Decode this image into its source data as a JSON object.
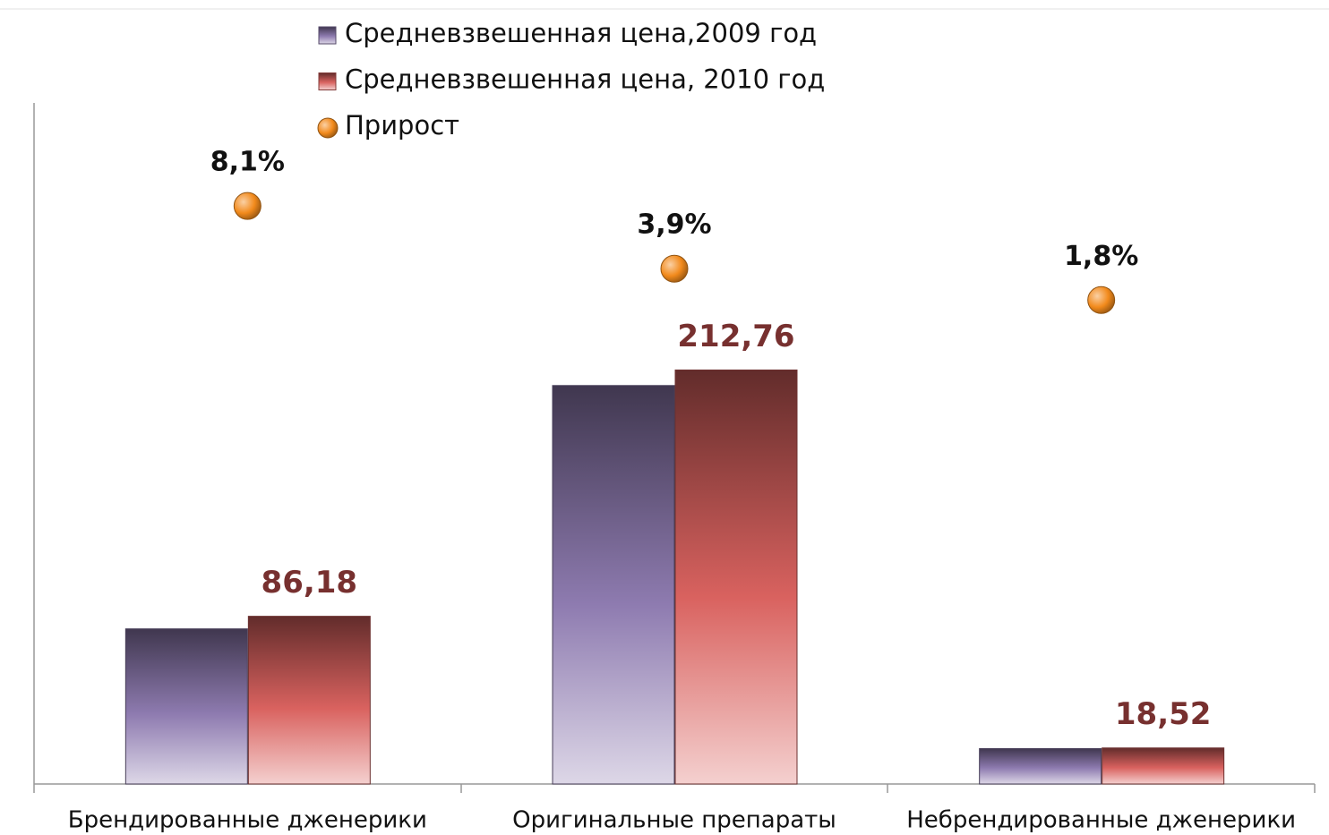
{
  "chart_data": {
    "type": "bar",
    "categories": [
      "Брендированные дженерики",
      "Оригинальные препараты",
      "Небрендированные дженерики"
    ],
    "series": [
      {
        "name": "Средневзвешенная цена,2009 год",
        "color": "#8e7bb0",
        "values": [
          79.72,
          204.77,
          18.19
        ]
      },
      {
        "name": "Средневзвешенная цена, 2010 год",
        "color": "#d9625f",
        "values": [
          86.18,
          212.76,
          18.52
        ],
        "value_labels": [
          "86,18",
          "212,76",
          "18,52"
        ]
      },
      {
        "name": "Прирост",
        "color": "#f28a1c",
        "type": "scatter",
        "axis": "y2",
        "values": [
          8.1,
          3.9,
          1.8
        ],
        "value_labels": [
          "8,1%",
          "3,9%",
          "1,8%"
        ]
      }
    ],
    "ylim": [
      0,
      350
    ],
    "y2lim": [
      -30.6,
      15
    ],
    "grid": false,
    "legend": "top"
  }
}
